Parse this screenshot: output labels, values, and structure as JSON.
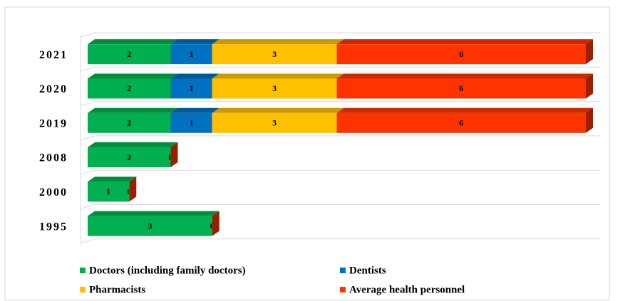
{
  "chart_data": {
    "type": "bar",
    "orientation": "horizontal",
    "stacked": true,
    "categories": [
      "2021",
      "2020",
      "2019",
      "2008",
      "2000",
      "1995"
    ],
    "series": [
      {
        "name": "Doctors (including family doctors)",
        "color": "#00b050",
        "values": [
          2,
          2,
          2,
          2,
          1,
          3
        ]
      },
      {
        "name": "Dentists",
        "color": "#0070c0",
        "values": [
          1,
          1,
          1,
          null,
          null,
          null
        ]
      },
      {
        "name": "Pharmacists",
        "color": "#ffc000",
        "values": [
          3,
          3,
          3,
          null,
          null,
          null
        ]
      },
      {
        "name": "Average health personnel",
        "color": "#ff3300",
        "values": [
          6,
          6,
          6,
          0,
          0,
          0
        ]
      }
    ],
    "xlim": [
      0,
      12
    ],
    "legend": "bottom"
  }
}
